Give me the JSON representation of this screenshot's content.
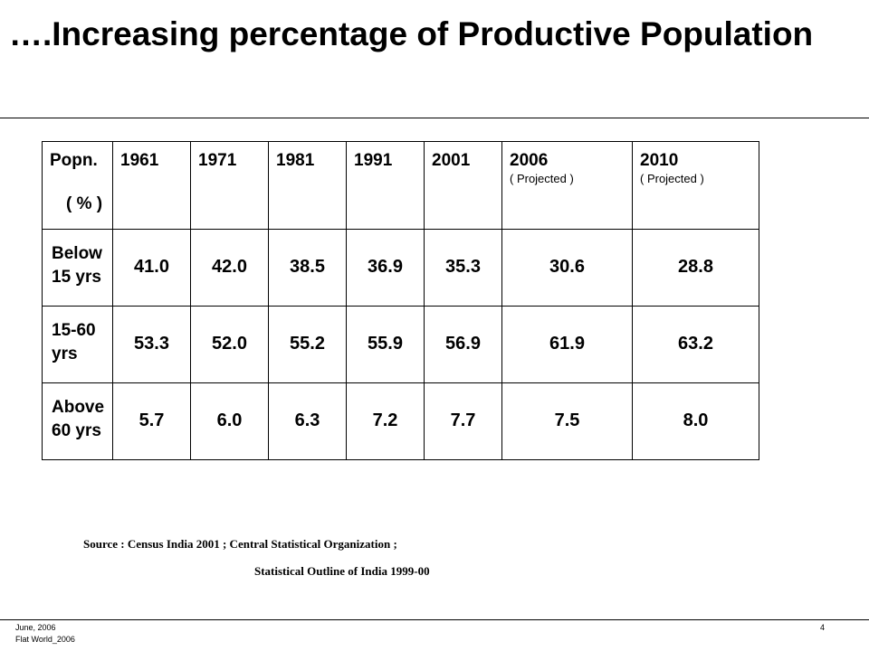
{
  "slide": {
    "title": "….Increasing percentage of Productive Population"
  },
  "table": {
    "header_label": "Popn.",
    "header_unit": "( %  )",
    "years": [
      {
        "year": "1961",
        "note": ""
      },
      {
        "year": "1971",
        "note": ""
      },
      {
        "year": "1981",
        "note": ""
      },
      {
        "year": "1991",
        "note": ""
      },
      {
        "year": "2001",
        "note": ""
      },
      {
        "year": "2006",
        "note": "( Projected )"
      },
      {
        "year": "2010",
        "note": "( Projected )"
      }
    ],
    "rows": [
      {
        "label": "Below 15 yrs",
        "values": [
          "41.0",
          "42.0",
          "38.5",
          "36.9",
          "35.3",
          "30.6",
          "28.8"
        ]
      },
      {
        "label": "15-60 yrs",
        "values": [
          "53.3",
          "52.0",
          "55.2",
          "55.9",
          "56.9",
          "61.9",
          "63.2"
        ]
      },
      {
        "label": "Above 60 yrs",
        "values": [
          "5.7",
          "6.0",
          "6.3",
          "7.2",
          "7.7",
          "7.5",
          "8.0"
        ]
      }
    ]
  },
  "source": {
    "line1": "Source : Census India 2001 ; Central Statistical Organization ;",
    "line2": "Statistical Outline of India 1999-00"
  },
  "footer": {
    "date": "June, 2006",
    "org": "Flat World_2006",
    "page_number": "4"
  }
}
